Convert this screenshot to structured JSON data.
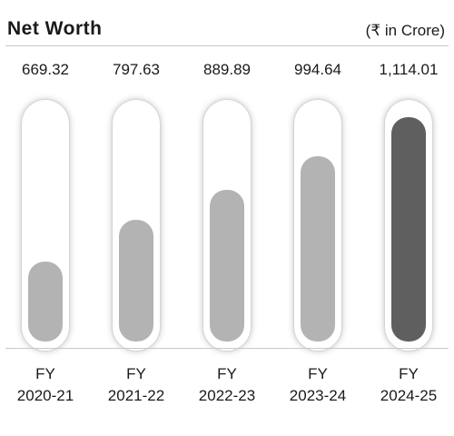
{
  "header": {
    "title": "Net Worth",
    "unit": "(₹ in Crore)"
  },
  "chart_data": {
    "type": "bar",
    "title": "Net Worth",
    "unit_label": "(₹ in Crore)",
    "categories": [
      [
        "FY",
        "2020-21"
      ],
      [
        "FY",
        "2021-22"
      ],
      [
        "FY",
        "2022-23"
      ],
      [
        "FY",
        "2023-24"
      ],
      [
        "FY",
        "2024-25"
      ]
    ],
    "values": [
      669.32,
      797.63,
      889.89,
      994.64,
      1114.01
    ],
    "value_labels": [
      "669.32",
      "797.63",
      "889.89",
      "994.64",
      "1,114.01"
    ],
    "ylim": [
      422,
      1140
    ],
    "bar_color": "#b3b3b3",
    "highlight_color": "#5f5f60",
    "highlight_index": 4,
    "grid": false
  }
}
